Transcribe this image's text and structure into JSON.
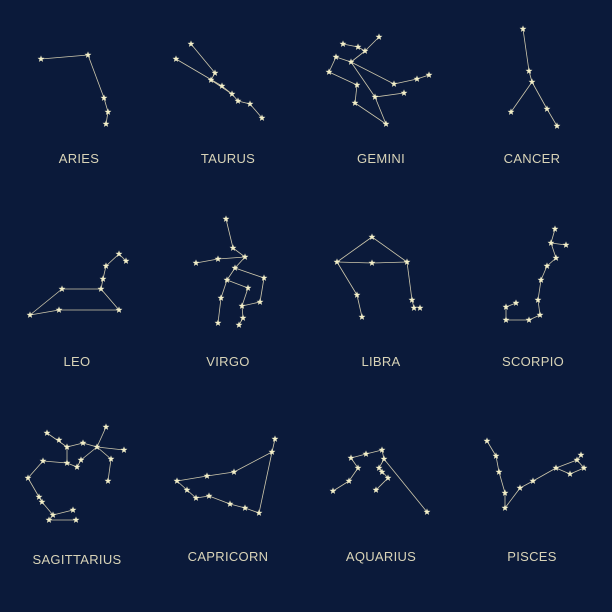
{
  "colors": {
    "background": "#0b1a3a",
    "line": "#cfc9ad",
    "star": "#f3efc9",
    "label": "#d9d4b8"
  },
  "constellations": [
    {
      "id": "aries",
      "name": "ARIES"
    },
    {
      "id": "taurus",
      "name": "TAURUS"
    },
    {
      "id": "gemini",
      "name": "GEMINI"
    },
    {
      "id": "cancer",
      "name": "CANCER"
    },
    {
      "id": "leo",
      "name": "LEO"
    },
    {
      "id": "virgo",
      "name": "VIRGO"
    },
    {
      "id": "libra",
      "name": "LIBRA"
    },
    {
      "id": "scorpio",
      "name": "SCORPIO"
    },
    {
      "id": "sagittarius",
      "name": "SAGITTARIUS"
    },
    {
      "id": "capricorn",
      "name": "CAPRICORN"
    },
    {
      "id": "aquarius",
      "name": "AQUARIUS"
    },
    {
      "id": "pisces",
      "name": "PISCES"
    }
  ]
}
